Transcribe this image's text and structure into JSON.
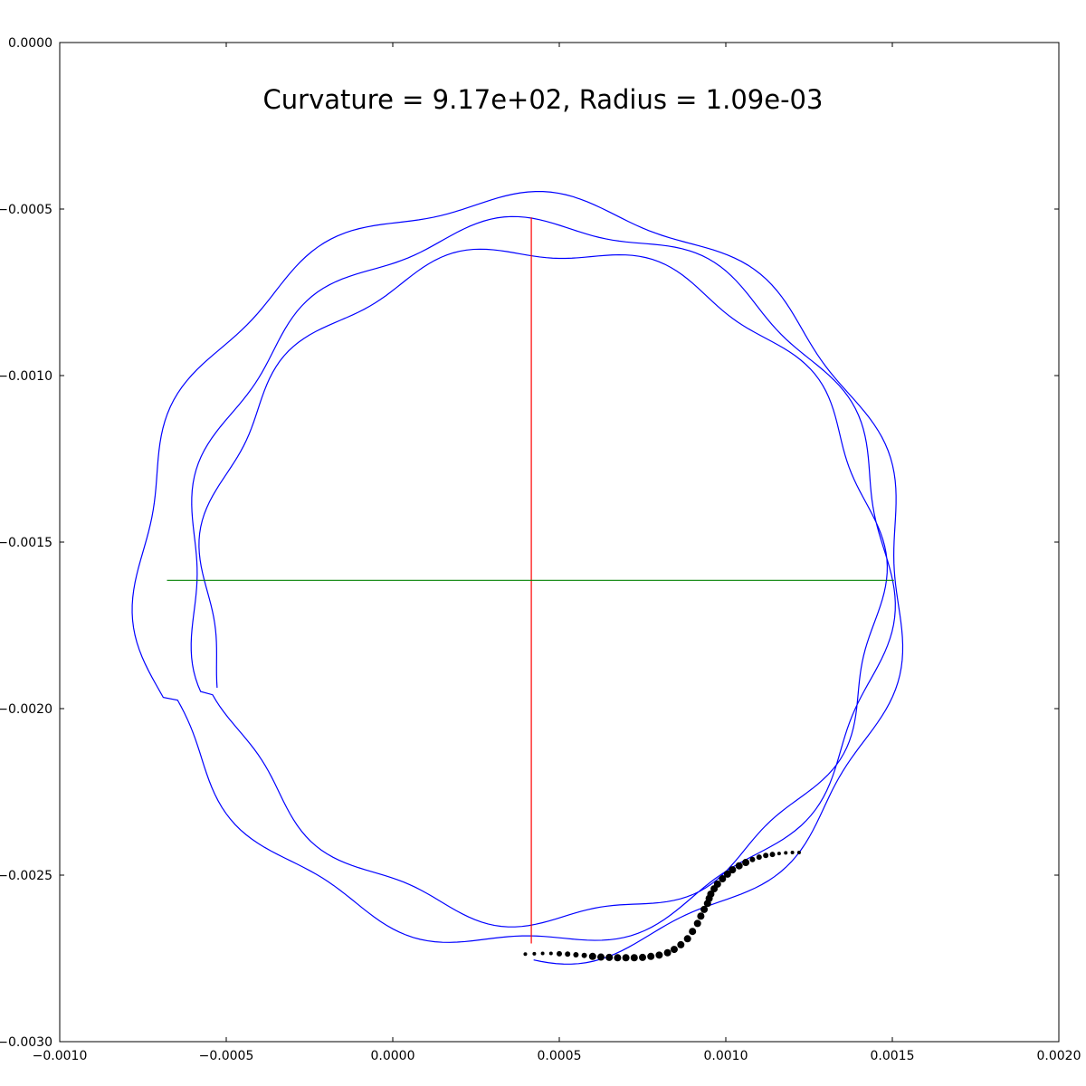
{
  "chart_data": {
    "type": "line",
    "title": "Curvature = 9.17e+02, Radius = 1.09e-03",
    "xlabel": "",
    "ylabel": "",
    "xlim": [
      -0.001,
      0.002
    ],
    "ylim": [
      0.0,
      -0.003
    ],
    "y_inverted": true,
    "x_ticks": [
      "−0.0010",
      "−0.0005",
      "0.0000",
      "0.0005",
      "0.0010",
      "0.0015",
      "0.0020"
    ],
    "x_tick_values": [
      -0.001,
      -0.0005,
      0.0,
      0.0005,
      0.001,
      0.0015,
      0.002
    ],
    "y_ticks": [
      "0.0000",
      "−0.0005",
      "−0.0010",
      "−0.0015",
      "−0.0020",
      "−0.0025",
      "−0.0030"
    ],
    "y_tick_values": [
      0.0,
      -0.0005,
      -0.001,
      -0.0015,
      -0.002,
      -0.0025,
      -0.003
    ],
    "grid": false,
    "colors": {
      "trajectory": "#0000ff",
      "vertical_diameter": "#ff0000",
      "horizontal_diameter": "#008000",
      "points": "#000000"
    },
    "circle_center": [
      0.000416,
      -0.001615
    ],
    "vertical_diameter": {
      "x": 0.000416,
      "y": [
        -0.000525,
        -0.002705
      ]
    },
    "horizontal_diameter": {
      "y": -0.001615,
      "x": [
        -0.000678,
        0.001505
      ]
    },
    "trajectory": {
      "start": [
        -0.00055,
        -0.00194
      ],
      "end": [
        0.00084,
        -0.00262
      ],
      "laps": 3,
      "lap_mean_radius": [
        0.000985,
        0.001055,
        0.00114
      ],
      "lap_center_shift": [
        4e-05,
        -5e-06
      ],
      "wobble_amplitude": 2.5e-05,
      "wobble_lobes": 11
    },
    "points": {
      "x": [
        0.000398,
        0.000425,
        0.00045,
        0.000475,
        0.0005,
        0.000525,
        0.00055,
        0.000575,
        0.0006,
        0.000625,
        0.00065,
        0.000675,
        0.0007,
        0.000725,
        0.00075,
        0.000775,
        0.0008,
        0.000825,
        0.000845,
        0.000865,
        0.000885,
        0.0009,
        0.000915,
        0.000925,
        0.000935,
        0.000945,
        0.00095,
        0.000955,
        0.000965,
        0.000975,
        0.00099,
        0.001005,
        0.00102,
        0.00104,
        0.00106,
        0.00108,
        0.0011,
        0.00112,
        0.00114,
        0.00116,
        0.00118,
        0.0012,
        0.00122
      ],
      "y": [
        -0.002737,
        -0.002736,
        -0.002735,
        -0.002735,
        -0.002736,
        -0.002737,
        -0.002739,
        -0.002741,
        -0.002744,
        -0.002746,
        -0.002747,
        -0.002748,
        -0.002748,
        -0.002748,
        -0.002747,
        -0.002744,
        -0.00274,
        -0.002733,
        -0.002723,
        -0.002709,
        -0.002691,
        -0.002669,
        -0.002645,
        -0.002623,
        -0.002603,
        -0.002585,
        -0.00257,
        -0.002557,
        -0.002541,
        -0.002527,
        -0.002511,
        -0.002497,
        -0.002484,
        -0.002472,
        -0.002462,
        -0.002453,
        -0.002446,
        -0.002441,
        -0.002438,
        -0.002435,
        -0.002433,
        -0.002432,
        -0.002432
      ],
      "sizes": [
        2,
        2,
        2,
        2,
        3,
        3,
        3,
        3,
        4,
        4,
        4,
        4,
        4,
        4,
        4,
        4,
        4,
        4,
        4,
        4,
        4,
        4,
        4,
        4,
        4,
        4,
        4,
        4,
        4,
        4,
        4,
        4,
        4,
        4,
        4,
        3,
        3,
        3,
        3,
        2,
        2,
        2,
        2
      ]
    }
  }
}
